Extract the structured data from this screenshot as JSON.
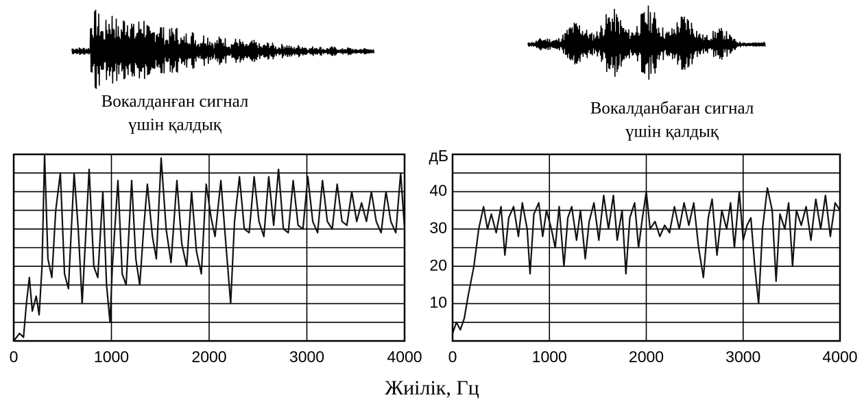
{
  "chart_data": [
    {
      "type": "line",
      "title": [
        "Вокалданған сигнал",
        "үшін қалдық"
      ],
      "xlim": [
        0,
        4000
      ],
      "xticks": [
        0,
        1000,
        2000,
        3000,
        4000
      ],
      "ylim": [
        0,
        50
      ],
      "ygrid": [
        0,
        5,
        10,
        15,
        20,
        25,
        30,
        35,
        40,
        45,
        50
      ],
      "grid": true,
      "series": [
        {
          "color": "#111111",
          "x": [
            0,
            60,
            100,
            130,
            160,
            190,
            230,
            260,
            290,
            316,
            350,
            390,
            430,
            477,
            520,
            560,
            618,
            660,
            700,
            772,
            820,
            860,
            912,
            950,
            985,
            1010,
            1067,
            1110,
            1150,
            1207,
            1250,
            1290,
            1330,
            1368,
            1420,
            1460,
            1509,
            1560,
            1610,
            1670,
            1720,
            1770,
            1820,
            1870,
            1920,
            1970,
            2020,
            2060,
            2120,
            2180,
            2220,
            2260,
            2310,
            2360,
            2410,
            2460,
            2510,
            2560,
            2610,
            2660,
            2710,
            2760,
            2810,
            2860,
            2910,
            2960,
            3010,
            3060,
            3110,
            3160,
            3210,
            3260,
            3310,
            3360,
            3410,
            3460,
            3510,
            3560,
            3610,
            3660,
            3710,
            3760,
            3810,
            3860,
            3910,
            3960,
            4000
          ],
          "values": [
            0,
            2,
            1,
            10,
            17,
            8,
            12,
            7,
            20,
            50,
            22,
            17,
            35,
            45,
            18,
            14,
            45,
            30,
            10,
            46,
            20,
            17,
            40,
            15,
            5,
            20,
            43,
            18,
            15,
            43,
            22,
            15,
            30,
            42,
            28,
            22,
            49,
            30,
            21,
            43,
            26,
            20,
            40,
            24,
            18,
            42,
            33,
            28,
            43,
            23,
            10,
            32,
            44,
            30,
            29,
            44,
            32,
            28,
            44,
            31,
            46,
            30,
            29,
            43,
            31,
            30,
            44,
            32,
            29,
            43,
            32,
            30,
            42,
            32,
            31,
            40,
            32,
            37,
            32,
            40,
            32,
            29,
            40,
            32,
            29,
            45,
            30
          ]
        }
      ]
    },
    {
      "type": "line",
      "title": [
        "Вокалданбаған сигнал",
        "үшін қалдық"
      ],
      "ylabel": "дБ",
      "xlim": [
        0,
        4000
      ],
      "xticks": [
        0,
        1000,
        2000,
        3000,
        4000
      ],
      "ylim": [
        0,
        50
      ],
      "yticks": [
        10,
        20,
        30,
        40
      ],
      "ygrid": [
        0,
        5,
        10,
        15,
        20,
        25,
        30,
        35,
        40,
        45,
        50
      ],
      "grid": true,
      "series": [
        {
          "color": "#111111",
          "x": [
            0,
            40,
            80,
            120,
            160,
            220,
            270,
            320,
            360,
            400,
            450,
            500,
            540,
            580,
            630,
            680,
            720,
            770,
            800,
            840,
            890,
            930,
            970,
            1020,
            1060,
            1100,
            1150,
            1190,
            1230,
            1280,
            1320,
            1370,
            1410,
            1460,
            1510,
            1560,
            1610,
            1660,
            1700,
            1750,
            1790,
            1830,
            1880,
            1920,
            1960,
            2000,
            2040,
            2090,
            2140,
            2190,
            2240,
            2290,
            2340,
            2390,
            2440,
            2490,
            2540,
            2590,
            2640,
            2680,
            2730,
            2780,
            2830,
            2870,
            2910,
            2960,
            3000,
            3040,
            3080,
            3120,
            3160,
            3200,
            3250,
            3300,
            3340,
            3380,
            3430,
            3470,
            3510,
            3550,
            3600,
            3650,
            3700,
            3750,
            3800,
            3850,
            3900,
            3950,
            4000
          ],
          "values": [
            2,
            5,
            3,
            6,
            12,
            20,
            30,
            36,
            30,
            34,
            29,
            36,
            23,
            33,
            36,
            28,
            37,
            30,
            18,
            34,
            37,
            28,
            35,
            30,
            25,
            36,
            20,
            33,
            36,
            27,
            35,
            22,
            32,
            37,
            27,
            39,
            30,
            39,
            27,
            35,
            18,
            33,
            37,
            25,
            33,
            40,
            30,
            32,
            28,
            31,
            29,
            36,
            30,
            37,
            31,
            37,
            25,
            17,
            33,
            38,
            23,
            35,
            30,
            37,
            25,
            40,
            27,
            31,
            33,
            20,
            10,
            30,
            41,
            35,
            16,
            34,
            30,
            37,
            20,
            35,
            31,
            36,
            27,
            38,
            30,
            39,
            28,
            37,
            35
          ]
        }
      ]
    }
  ],
  "xlabel": "Жиілік, Гц"
}
